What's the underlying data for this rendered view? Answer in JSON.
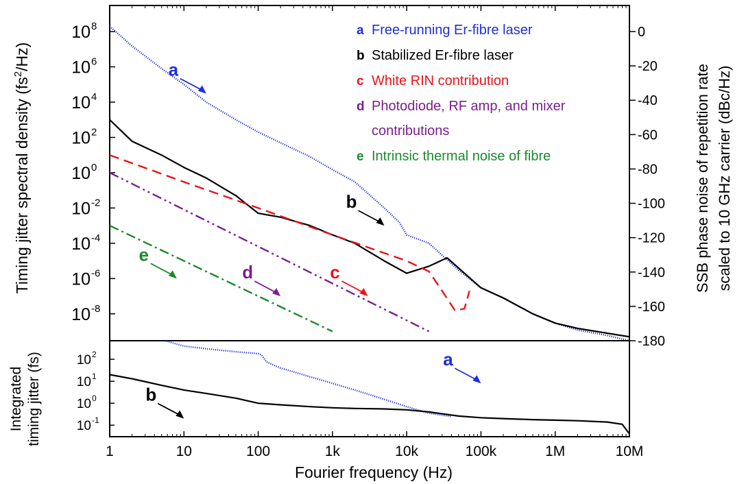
{
  "chart_data": [
    {
      "type": "line",
      "panel": "top",
      "xscale": "log",
      "yscale": "log",
      "xlim": [
        1,
        10000000
      ],
      "ylim": [
        3e-10,
        3000000000.0
      ],
      "ylabel": "Timing jitter spectral density (fs²/Hz)",
      "ylabel_main": "Timing jitter spectral density (fs",
      "ylabel_sup": "2",
      "ylabel_tail": "/Hz)",
      "yticks": [
        {
          "value": 100000000.0,
          "mant": "10",
          "exp": "8"
        },
        {
          "value": 1000000.0,
          "mant": "10",
          "exp": "6"
        },
        {
          "value": 10000.0,
          "mant": "10",
          "exp": "4"
        },
        {
          "value": 100.0,
          "mant": "10",
          "exp": "2"
        },
        {
          "value": 1.0,
          "mant": "10",
          "exp": "0"
        },
        {
          "value": 0.01,
          "mant": "10",
          "exp": "-2"
        },
        {
          "value": 0.0001,
          "mant": "10",
          "exp": "-4"
        },
        {
          "value": 1e-06,
          "mant": "10",
          "exp": "-6"
        },
        {
          "value": 1e-08,
          "mant": "10",
          "exp": "-8"
        }
      ],
      "right_axis": {
        "label_line1": "SSB phase noise of repetition rate",
        "label_line2": "scaled to 10 GHz carrier (dBc/Hz)",
        "range": [
          -180,
          0
        ],
        "ticks": [
          {
            "value": 0,
            "label": "0"
          },
          {
            "value": -20,
            "label": "-20"
          },
          {
            "value": -40,
            "label": "-40"
          },
          {
            "value": -60,
            "label": "-60"
          },
          {
            "value": -80,
            "label": "-80"
          },
          {
            "value": -100,
            "label": "-100"
          },
          {
            "value": -120,
            "label": "-120"
          },
          {
            "value": -140,
            "label": "-140"
          },
          {
            "value": -160,
            "label": "-160"
          },
          {
            "value": -180,
            "label": "-180"
          }
        ]
      },
      "legend": [
        {
          "key": "a",
          "text": "Free-running Er-fibre laser",
          "color": "#1f2fd6"
        },
        {
          "key": "b",
          "text": "Stabilized Er-fibre laser",
          "color": "#000000"
        },
        {
          "key": "c",
          "text": "White RIN contribution",
          "color": "#e8141a"
        },
        {
          "key": "d",
          "text": "Photodiode, RF amp, and mixer",
          "text2": "contributions",
          "color": "#7a1f8e"
        },
        {
          "key": "e",
          "text": "Intrinsic thermal noise of fibre",
          "color": "#1a8a2a"
        }
      ],
      "series": [
        {
          "key": "a",
          "color": "#1f2fd6",
          "style": "dotted",
          "x": [
            1,
            2,
            5,
            10,
            20,
            50,
            100,
            200,
            500,
            1000,
            2000,
            5000,
            8000,
            10000,
            20000,
            50000,
            100000,
            200000,
            500000,
            1000000,
            2000000,
            5000000,
            10000000
          ],
          "y": [
            200000000.0,
            15000000.0,
            800000.0,
            100000.0,
            10000.0,
            1000.0,
            200.0,
            50,
            8,
            1.5,
            0.3,
            0.01,
            0.0015,
            0.0003,
            0.0001,
            3e-06,
            3e-07,
            8e-08,
            1e-08,
            3e-09,
            1.2e-09,
            6e-10,
            3e-10
          ]
        },
        {
          "key": "b",
          "color": "#000000",
          "style": "solid",
          "x": [
            1,
            2,
            5,
            10,
            20,
            50,
            100,
            200,
            500,
            1000,
            2000,
            5000,
            10000,
            20000,
            35000,
            60000,
            100000,
            200000,
            500000,
            1000000,
            2000000,
            5000000,
            10000000
          ],
          "y": [
            1000,
            60,
            10,
            2,
            0.5,
            0.05,
            0.005,
            0.003,
            0.001,
            0.0003,
            0.0001,
            1e-05,
            2e-06,
            5e-06,
            1.5e-05,
            2e-06,
            3e-07,
            8e-08,
            1e-08,
            3e-09,
            1.5e-09,
            8e-10,
            5e-10
          ]
        },
        {
          "key": "c",
          "color": "#e8141a",
          "style": "dashed",
          "x": [
            1,
            10,
            100,
            1000,
            10000,
            20000,
            30000,
            45000,
            60000,
            70000
          ],
          "y": [
            10,
            0.3,
            0.01,
            0.0003,
            1e-05,
            2.5e-06,
            2e-07,
            1.5e-08,
            2e-08,
            2e-07
          ]
        },
        {
          "key": "d",
          "color": "#7a1f8e",
          "style": "dash-dot-dot",
          "x": [
            1,
            20000
          ],
          "y": [
            1,
            1e-09
          ]
        },
        {
          "key": "e",
          "color": "#1a8a2a",
          "style": "dash-dot",
          "x": [
            1,
            1000
          ],
          "y": [
            0.001,
            1e-09
          ]
        }
      ],
      "annotations": [
        {
          "label": "a",
          "color": "#1f2fd6",
          "x": 20,
          "y": 30000.0
        },
        {
          "label": "b",
          "color": "#000000",
          "x": 5000,
          "y": 0.001
        },
        {
          "label": "c",
          "color": "#e8141a",
          "x": 3000,
          "y": 1e-07
        },
        {
          "label": "d",
          "color": "#7a1f8e",
          "x": 200,
          "y": 1e-07
        },
        {
          "label": "e",
          "color": "#1a8a2a",
          "x": 8,
          "y": 1e-06
        }
      ]
    },
    {
      "type": "line",
      "panel": "bottom",
      "xscale": "log",
      "yscale": "log",
      "xlim": [
        1,
        10000000
      ],
      "ylim": [
        0.03,
        700
      ],
      "xlabel": "Fourier frequency (Hz)",
      "ylabel_line1": "Integrated",
      "ylabel_line2": "timing jitter (fs)",
      "xticks": [
        {
          "value": 1,
          "label": "1"
        },
        {
          "value": 10,
          "label": "10"
        },
        {
          "value": 100,
          "label": "100"
        },
        {
          "value": 1000,
          "label": "1k"
        },
        {
          "value": 10000,
          "label": "10k"
        },
        {
          "value": 100000,
          "label": "100k"
        },
        {
          "value": 1000000,
          "label": "1M"
        },
        {
          "value": 10000000,
          "label": "10M"
        }
      ],
      "yticks": [
        {
          "value": 100,
          "mant": "10",
          "exp": "2"
        },
        {
          "value": 10,
          "mant": "10",
          "exp": "1"
        },
        {
          "value": 1,
          "mant": "10",
          "exp": "0"
        },
        {
          "value": 0.1,
          "mant": "10",
          "exp": "-1"
        }
      ],
      "series": [
        {
          "key": "a",
          "color": "#1f2fd6",
          "style": "dotted",
          "x": [
            5.5,
            10,
            20,
            50,
            100,
            110,
            130,
            200,
            500,
            1000,
            2000,
            5000,
            10000,
            20000,
            40000
          ],
          "y": [
            700,
            400,
            300,
            220,
            180,
            160,
            75,
            40,
            16,
            8,
            4,
            1.5,
            0.7,
            0.35,
            0.25
          ]
        },
        {
          "key": "b",
          "color": "#000000",
          "style": "solid",
          "x": [
            1,
            2,
            5,
            10,
            20,
            50,
            100,
            200,
            500,
            1000,
            2000,
            5000,
            10000,
            20000,
            50000,
            100000,
            200000,
            500000,
            1000000,
            2000000,
            5000000,
            8000000,
            10000000
          ],
          "y": [
            20,
            13,
            6.5,
            4,
            2.8,
            1.7,
            1.0,
            0.85,
            0.7,
            0.62,
            0.58,
            0.55,
            0.5,
            0.4,
            0.26,
            0.22,
            0.2,
            0.18,
            0.17,
            0.16,
            0.14,
            0.11,
            0.04
          ]
        }
      ],
      "annotations": [
        {
          "label": "a",
          "color": "#1f2fd6",
          "x": 100000,
          "y": 8
        },
        {
          "label": "b",
          "color": "#000000",
          "x": 10,
          "y": 0.2
        }
      ]
    }
  ]
}
